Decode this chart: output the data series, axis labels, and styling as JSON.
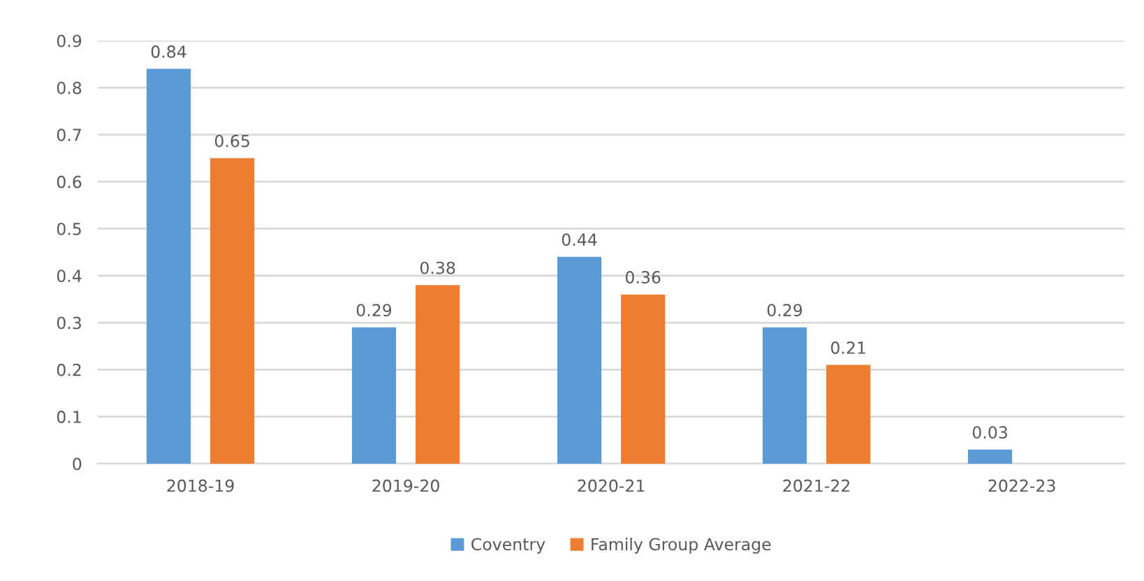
{
  "chart_data": {
    "type": "bar",
    "categories": [
      "2018-19",
      "2019-20",
      "2020-21",
      "2021-22",
      "2022-23"
    ],
    "series": [
      {
        "name": "Coventry",
        "color": "#5b9bd5",
        "values": [
          0.84,
          0.29,
          0.44,
          0.29,
          0.03
        ]
      },
      {
        "name": "Family Group Average",
        "color": "#ed7d31",
        "values": [
          0.65,
          0.38,
          0.36,
          0.21,
          null
        ]
      }
    ],
    "ylim": [
      0,
      0.9
    ],
    "yticks": [
      0,
      0.1,
      0.2,
      0.3,
      0.4,
      0.5,
      0.6,
      0.7,
      0.8,
      0.9
    ],
    "grid": "y",
    "legend": "bottom",
    "data_labels": true
  }
}
